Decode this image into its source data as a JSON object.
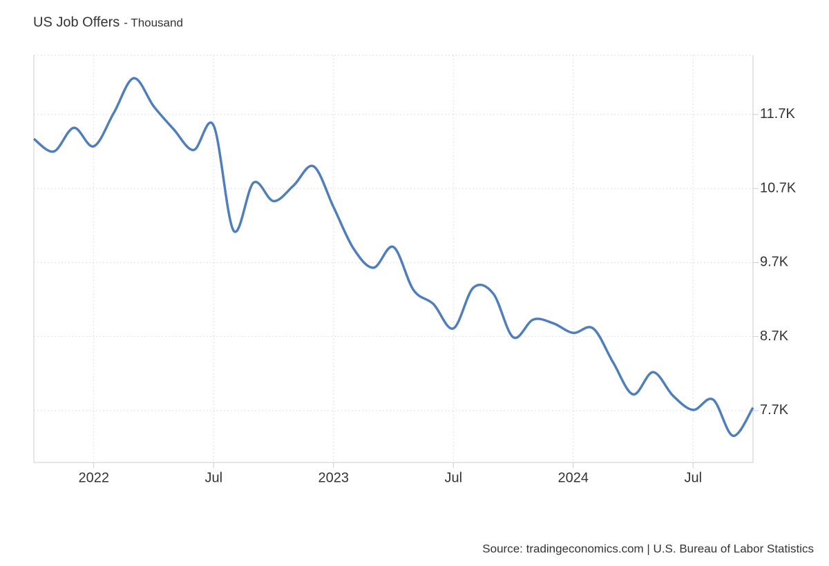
{
  "chart_data": {
    "type": "line",
    "title": "US Job Offers",
    "subtitle": "- Thousand",
    "source": "Source: tradingeconomics.com | U.S. Bureau of Labor Statistics",
    "x": [
      "2021-10",
      "2021-11",
      "2021-12",
      "2022-01",
      "2022-02",
      "2022-03",
      "2022-04",
      "2022-05",
      "2022-06",
      "2022-07",
      "2022-08",
      "2022-09",
      "2022-10",
      "2022-11",
      "2022-12",
      "2023-01",
      "2023-02",
      "2023-03",
      "2023-04",
      "2023-05",
      "2023-06",
      "2023-07",
      "2023-08",
      "2023-09",
      "2023-10",
      "2023-11",
      "2023-12",
      "2024-01",
      "2024-02",
      "2024-03",
      "2024-04",
      "2024-05",
      "2024-06",
      "2024-07",
      "2024-08",
      "2024-09",
      "2024-10"
    ],
    "series": [
      {
        "name": "US Job Offers",
        "color": "#4f7fbb",
        "values": [
          11.37,
          11.2,
          11.52,
          11.27,
          11.72,
          12.19,
          11.81,
          11.5,
          11.22,
          11.55,
          10.13,
          10.78,
          10.53,
          10.74,
          11.0,
          10.45,
          9.89,
          9.63,
          9.91,
          9.33,
          9.14,
          8.81,
          9.36,
          9.28,
          8.69,
          8.93,
          8.88,
          8.75,
          8.81,
          8.35,
          7.92,
          8.22,
          7.9,
          7.71,
          7.85,
          7.36,
          7.74
        ]
      }
    ],
    "xlim": [
      "2021-10",
      "2024-10"
    ],
    "xticks": [
      {
        "value": "2022-01",
        "label": "2022"
      },
      {
        "value": "2022-07",
        "label": "Jul"
      },
      {
        "value": "2023-01",
        "label": "2023"
      },
      {
        "value": "2023-07",
        "label": "Jul"
      },
      {
        "value": "2024-01",
        "label": "2024"
      },
      {
        "value": "2024-07",
        "label": "Jul"
      }
    ],
    "ylim": [
      7.0,
      12.5
    ],
    "yticks": [
      {
        "value": 7.7,
        "label": "7.7K"
      },
      {
        "value": 8.7,
        "label": "8.7K"
      },
      {
        "value": 9.7,
        "label": "9.7K"
      },
      {
        "value": 10.7,
        "label": "10.7K"
      },
      {
        "value": 11.7,
        "label": "11.7K"
      }
    ],
    "grid": true
  }
}
